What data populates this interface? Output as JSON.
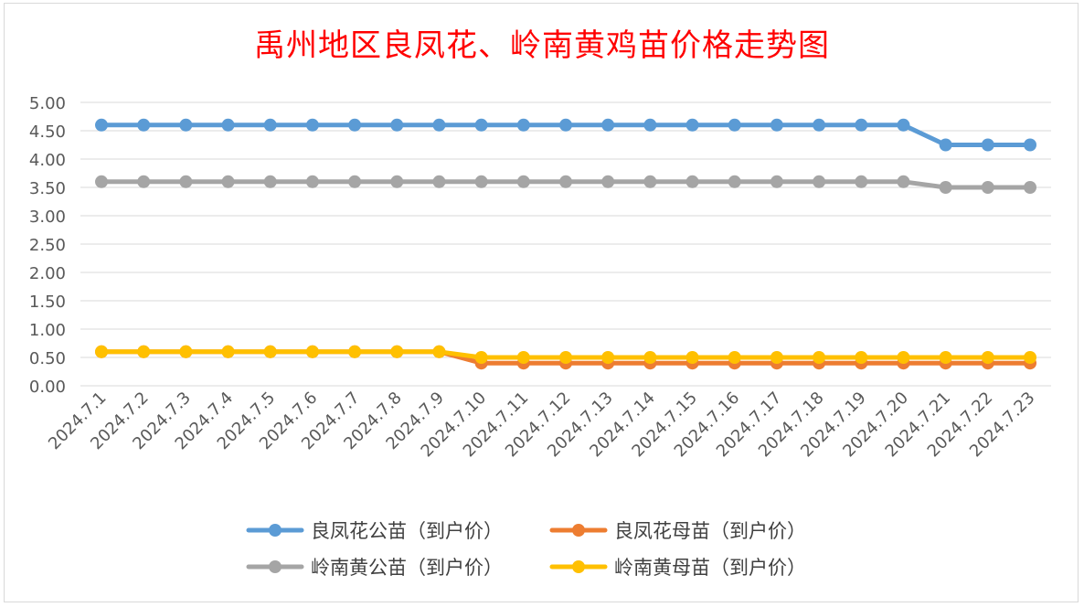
{
  "chart_data": {
    "type": "line",
    "title": "禹州地区良凤花、岭南黄鸡苗价格走势图",
    "categories": [
      "2024.7.1",
      "2024.7.2",
      "2024.7.3",
      "2024.7.4",
      "2024.7.5",
      "2024.7.6",
      "2024.7.7",
      "2024.7.8",
      "2024.7.9",
      "2024.7.10",
      "2024.7.11",
      "2024.7.12",
      "2024.7.13",
      "2024.7.14",
      "2024.7.15",
      "2024.7.16",
      "2024.7.17",
      "2024.7.18",
      "2024.7.19",
      "2024.7.20",
      "2024.7.21",
      "2024.7.22",
      "2024.7.23"
    ],
    "y_ticks": [
      "0.00",
      "0.50",
      "1.00",
      "1.50",
      "2.00",
      "2.50",
      "3.00",
      "3.50",
      "4.00",
      "4.50",
      "5.00"
    ],
    "ylim": [
      0,
      5
    ],
    "grid": true,
    "legend_position": "bottom",
    "series": [
      {
        "name": "良凤花公苗（到户价）",
        "color": "#5b9bd5",
        "values": [
          4.6,
          4.6,
          4.6,
          4.6,
          4.6,
          4.6,
          4.6,
          4.6,
          4.6,
          4.6,
          4.6,
          4.6,
          4.6,
          4.6,
          4.6,
          4.6,
          4.6,
          4.6,
          4.6,
          4.6,
          4.25,
          4.25,
          4.25
        ]
      },
      {
        "name": "良凤花母苗（到户价）",
        "color": "#ed7d31",
        "values": [
          0.6,
          0.6,
          0.6,
          0.6,
          0.6,
          0.6,
          0.6,
          0.6,
          0.6,
          0.4,
          0.4,
          0.4,
          0.4,
          0.4,
          0.4,
          0.4,
          0.4,
          0.4,
          0.4,
          0.4,
          0.4,
          0.4,
          0.4
        ]
      },
      {
        "name": "岭南黄公苗（到户价）",
        "color": "#a5a5a5",
        "values": [
          3.6,
          3.6,
          3.6,
          3.6,
          3.6,
          3.6,
          3.6,
          3.6,
          3.6,
          3.6,
          3.6,
          3.6,
          3.6,
          3.6,
          3.6,
          3.6,
          3.6,
          3.6,
          3.6,
          3.6,
          3.5,
          3.5,
          3.5
        ]
      },
      {
        "name": "岭南黄母苗（到户价）",
        "color": "#ffc000",
        "values": [
          0.6,
          0.6,
          0.6,
          0.6,
          0.6,
          0.6,
          0.6,
          0.6,
          0.6,
          0.5,
          0.5,
          0.5,
          0.5,
          0.5,
          0.5,
          0.5,
          0.5,
          0.5,
          0.5,
          0.5,
          0.5,
          0.5,
          0.5
        ]
      }
    ]
  }
}
